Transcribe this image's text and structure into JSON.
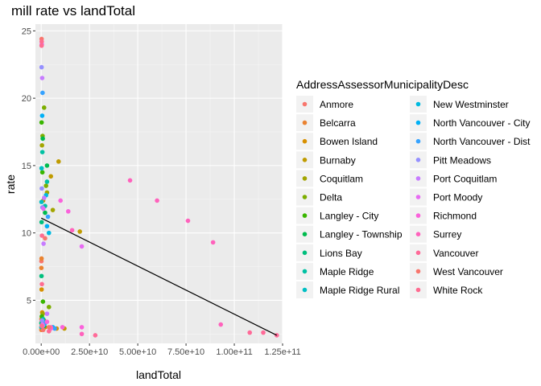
{
  "chart_data": {
    "type": "scatter",
    "title": "mill rate vs landTotal",
    "xlabel": "landTotal",
    "ylabel": "rate",
    "xlim": [
      -3000000000,
      125000000000
    ],
    "ylim": [
      1.8,
      25.5
    ],
    "x_ticks": [
      0,
      25000000000,
      50000000000,
      75000000000,
      100000000000,
      125000000000
    ],
    "x_tick_labels": [
      "0.00e+00",
      "2.50e+10",
      "5.00e+10",
      "7.50e+10",
      "1.00e+11",
      "1.25e+11"
    ],
    "y_ticks": [
      5,
      10,
      15,
      20,
      25
    ],
    "y_tick_labels": [
      "5",
      "10",
      "15",
      "20",
      "25"
    ],
    "grid": true,
    "legend_placement": "right",
    "legend_title": "AddressAssessorMunicipalityDesc",
    "trend_line": {
      "x": [
        0,
        122000000000
      ],
      "y": [
        11.1,
        2.4
      ],
      "color": "#000000"
    },
    "series": [
      {
        "name": "Anmore",
        "color": "#F8766D",
        "points": [
          [
            150000000,
            2.9
          ],
          [
            200000000,
            3.4
          ],
          [
            100000000,
            7.9
          ],
          [
            250000000,
            3.1
          ]
        ]
      },
      {
        "name": "Belcarra",
        "color": "#EA8331",
        "points": [
          [
            100000000,
            2.8
          ],
          [
            120000000,
            3.6
          ],
          [
            80000000,
            7.4
          ],
          [
            180000000,
            8.1
          ]
        ]
      },
      {
        "name": "Bowen Island",
        "color": "#D89000",
        "points": [
          [
            300000000,
            3.3
          ],
          [
            500000000,
            4.1
          ],
          [
            200000000,
            5.8
          ],
          [
            8000000000,
            2.9
          ]
        ]
      },
      {
        "name": "Burnaby",
        "color": "#C09B00",
        "points": [
          [
            2000000000,
            3.0
          ],
          [
            5000000000,
            14.2
          ],
          [
            9000000000,
            15.3
          ],
          [
            20000000000,
            10.1
          ],
          [
            1000000000,
            12.4
          ],
          [
            12000000000,
            2.9
          ]
        ]
      },
      {
        "name": "Coquitlam",
        "color": "#A3A500",
        "points": [
          [
            1500000000,
            3.5
          ],
          [
            3000000000,
            13.0
          ],
          [
            6000000000,
            11.7
          ],
          [
            400000000,
            16.5
          ],
          [
            800000000,
            4.0
          ]
        ]
      },
      {
        "name": "Delta",
        "color": "#7CAE00",
        "points": [
          [
            1000000000,
            3.2
          ],
          [
            2500000000,
            13.5
          ],
          [
            4000000000,
            4.5
          ],
          [
            700000000,
            17.2
          ],
          [
            1500000000,
            19.3
          ]
        ]
      },
      {
        "name": "Langley - City",
        "color": "#39B600",
        "points": [
          [
            300000000,
            3.8
          ],
          [
            600000000,
            14.5
          ],
          [
            900000000,
            4.9
          ],
          [
            200000000,
            18.2
          ]
        ]
      },
      {
        "name": "Langley - Township",
        "color": "#00BB4E",
        "points": [
          [
            1500000000,
            3.1
          ],
          [
            2000000000,
            11.5
          ],
          [
            3000000000,
            15.0
          ],
          [
            800000000,
            17.0
          ]
        ]
      },
      {
        "name": "Lions Bay",
        "color": "#00BF7D",
        "points": [
          [
            100000000,
            3.3
          ],
          [
            150000000,
            6.8
          ],
          [
            200000000,
            10.8
          ]
        ]
      },
      {
        "name": "Maple Ridge",
        "color": "#00C1A3",
        "points": [
          [
            1000000000,
            3.6
          ],
          [
            2000000000,
            12.0
          ],
          [
            3000000000,
            13.8
          ],
          [
            600000000,
            16.0
          ]
        ]
      },
      {
        "name": "Maple Ridge Rural",
        "color": "#00BFC4",
        "points": [
          [
            100000000,
            3.0
          ],
          [
            150000000,
            12.3
          ],
          [
            200000000,
            14.8
          ]
        ]
      },
      {
        "name": "New Westminster",
        "color": "#00BAE0",
        "points": [
          [
            1200000000,
            3.4
          ],
          [
            2500000000,
            12.8
          ],
          [
            4000000000,
            10.0
          ]
        ]
      },
      {
        "name": "North Vancouver - City",
        "color": "#00B0F6",
        "points": [
          [
            1500000000,
            3.2
          ],
          [
            3000000000,
            10.5
          ],
          [
            500000000,
            18.7
          ],
          [
            6000000000,
            3.0
          ]
        ]
      },
      {
        "name": "North Vancouver - Dist",
        "color": "#35A2FF",
        "points": [
          [
            2000000000,
            3.3
          ],
          [
            3500000000,
            11.2
          ],
          [
            700000000,
            20.4
          ],
          [
            7000000000,
            2.9
          ]
        ]
      },
      {
        "name": "Pitt Meadows",
        "color": "#9590FF",
        "points": [
          [
            400000000,
            3.5
          ],
          [
            600000000,
            11.9
          ],
          [
            300000000,
            13.3
          ],
          [
            200000000,
            22.3
          ]
        ]
      },
      {
        "name": "Port Coquitlam",
        "color": "#C77CFF",
        "points": [
          [
            800000000,
            3.1
          ],
          [
            1500000000,
            12.6
          ],
          [
            1200000000,
            9.2
          ],
          [
            500000000,
            21.5
          ],
          [
            3000000000,
            4.0
          ]
        ]
      },
      {
        "name": "Port Moody",
        "color": "#E76BF3",
        "points": [
          [
            600000000,
            3.2
          ],
          [
            1100000000,
            11.8
          ],
          [
            300000000,
            24.0
          ],
          [
            21000000000,
            9.0
          ]
        ]
      },
      {
        "name": "Richmond",
        "color": "#FA62DB",
        "points": [
          [
            3000000000,
            3.4
          ],
          [
            10000000000,
            12.4
          ],
          [
            14000000000,
            11.6
          ],
          [
            21000000000,
            3.0
          ],
          [
            11000000000,
            3.0
          ],
          [
            5000000000,
            2.9
          ]
        ]
      },
      {
        "name": "Surrey",
        "color": "#FF62BC",
        "points": [
          [
            5000000000,
            3.0
          ],
          [
            16000000000,
            10.2
          ],
          [
            46000000000,
            13.9
          ],
          [
            60000000000,
            12.4
          ],
          [
            76000000000,
            10.9
          ],
          [
            89000000000,
            9.3
          ],
          [
            93000000000,
            3.2
          ],
          [
            21000000000,
            2.5
          ]
        ]
      },
      {
        "name": "Vancouver",
        "color": "#FF6A98",
        "points": [
          [
            28000000000,
            2.4
          ],
          [
            108000000000,
            2.6
          ],
          [
            115000000000,
            2.6
          ],
          [
            122000000000,
            2.4
          ],
          [
            4000000000,
            2.7
          ]
        ]
      },
      {
        "name": "West Vancouver",
        "color": "#F8766D",
        "points": [
          [
            1000000000,
            2.8
          ],
          [
            2000000000,
            9.6
          ],
          [
            4000000000,
            3.0
          ],
          [
            200000000,
            24.4
          ]
        ]
      },
      {
        "name": "White Rock",
        "color": "#FF6C91",
        "points": [
          [
            300000000,
            3.1
          ],
          [
            400000000,
            9.8
          ],
          [
            250000000,
            24.2
          ],
          [
            200000000,
            23.9
          ],
          [
            350000000,
            6.2
          ]
        ]
      }
    ]
  }
}
